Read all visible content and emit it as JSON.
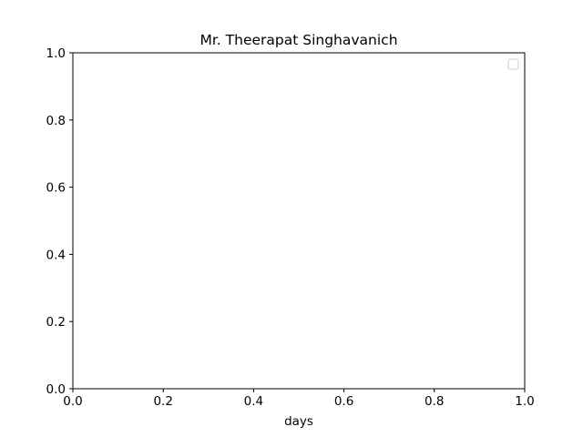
{
  "chart_data": {
    "type": "line",
    "title": "Mr. Theerapat Singhavanich",
    "xlabel": "days",
    "ylabel": "",
    "xlim": [
      0.0,
      1.0
    ],
    "ylim": [
      0.0,
      1.0
    ],
    "xticks": [
      "0.0",
      "0.2",
      "0.4",
      "0.6",
      "0.8",
      "1.0"
    ],
    "yticks": [
      "0.0",
      "0.2",
      "0.4",
      "0.6",
      "0.8",
      "1.0"
    ],
    "series": [],
    "grid": false,
    "legend": {
      "location": "upper right",
      "entries": []
    }
  },
  "colors": {
    "background": "#ffffff",
    "axes": "#000000",
    "legend_border": "#cccccc"
  }
}
